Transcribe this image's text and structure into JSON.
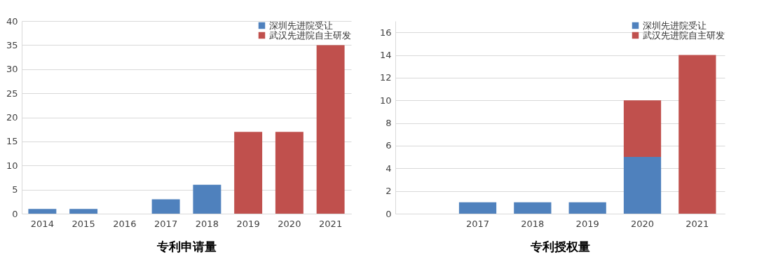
{
  "chart_data": [
    {
      "type": "bar",
      "xlabel": "专利申请量",
      "categories": [
        "2014",
        "2015",
        "2016",
        "2017",
        "2018",
        "2019",
        "2020",
        "2021"
      ],
      "stacked": true,
      "legend": "top right",
      "grid": "y",
      "ylim": [
        0,
        40
      ],
      "yticks": [
        0,
        5,
        10,
        15,
        20,
        25,
        30,
        35,
        40
      ],
      "series": [
        {
          "name": "深圳先进院受让",
          "color": "#4f81bd",
          "values": [
            1,
            1,
            0,
            3,
            6,
            null,
            null,
            null
          ]
        },
        {
          "name": "武汉先进院自主研发",
          "color": "#c0504d",
          "values": [
            null,
            null,
            null,
            null,
            null,
            17,
            17,
            35
          ]
        }
      ]
    },
    {
      "type": "bar",
      "xlabel": "专利授权量",
      "categories": [
        null,
        "2017",
        "2018",
        "2019",
        "2020",
        "2021"
      ],
      "stacked": true,
      "legend": "top right",
      "grid": "y",
      "ylim": [
        0,
        17
      ],
      "yticks": [
        0,
        2,
        4,
        6,
        8,
        10,
        12,
        14,
        16
      ],
      "series": [
        {
          "name": "深圳先进院受让",
          "color": "#4f81bd",
          "values": [
            null,
            1,
            1,
            1,
            5,
            null
          ]
        },
        {
          "name": "武汉先进院自主研发",
          "color": "#c0504d",
          "values": [
            null,
            null,
            null,
            null,
            5,
            14
          ]
        }
      ]
    }
  ]
}
